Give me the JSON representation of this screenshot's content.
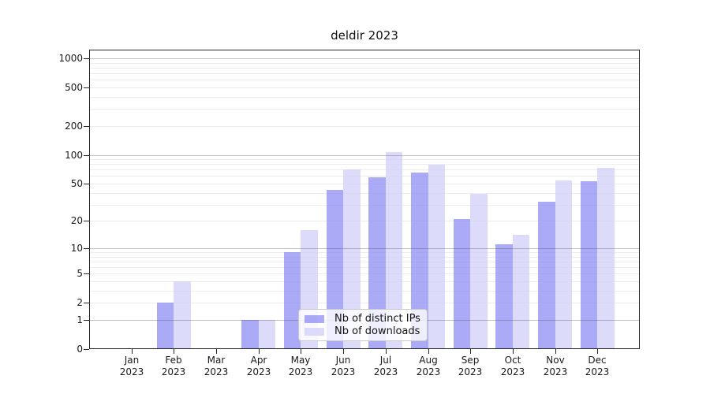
{
  "chart_data": {
    "type": "bar",
    "title": "deldir 2023",
    "categories": [
      [
        "Jan",
        "2023"
      ],
      [
        "Feb",
        "2023"
      ],
      [
        "Mar",
        "2023"
      ],
      [
        "Apr",
        "2023"
      ],
      [
        "May",
        "2023"
      ],
      [
        "Jun",
        "2023"
      ],
      [
        "Jul",
        "2023"
      ],
      [
        "Aug",
        "2023"
      ],
      [
        "Sep",
        "2023"
      ],
      [
        "Oct",
        "2023"
      ],
      [
        "Nov",
        "2023"
      ],
      [
        "Dec",
        "2023"
      ]
    ],
    "series": [
      {
        "name": "Nb of distinct IPs",
        "color": "#8686f2",
        "alpha": 0.7,
        "values": [
          0,
          2,
          0,
          1,
          9,
          43,
          58,
          65,
          21,
          11,
          32,
          53
        ]
      },
      {
        "name": "Nb of downloads",
        "color": "#cdcdf8",
        "alpha": 0.7,
        "values": [
          0,
          4,
          0,
          1,
          16,
          71,
          107,
          79,
          39,
          14,
          54,
          73
        ]
      }
    ],
    "yscale": "log1p",
    "yticks": [
      0,
      1,
      2,
      5,
      10,
      20,
      50,
      100,
      200,
      500,
      1000
    ],
    "ylim": [
      0,
      1230
    ],
    "grid": {
      "major_lines": [
        1,
        10,
        100,
        1000
      ],
      "minor_mantissas": [
        2,
        3,
        4,
        5,
        6,
        7,
        8,
        9
      ],
      "minor_decades": [
        1,
        10,
        100,
        1000
      ]
    },
    "legend_position": "inside-bottom-center",
    "xlabel": "",
    "ylabel": ""
  },
  "colors": {
    "background": "#ffffff",
    "axis": "#262626",
    "major_grid": "#c2c2c2",
    "minor_grid": "#ededed",
    "legend_border": "#c8c8c8"
  }
}
